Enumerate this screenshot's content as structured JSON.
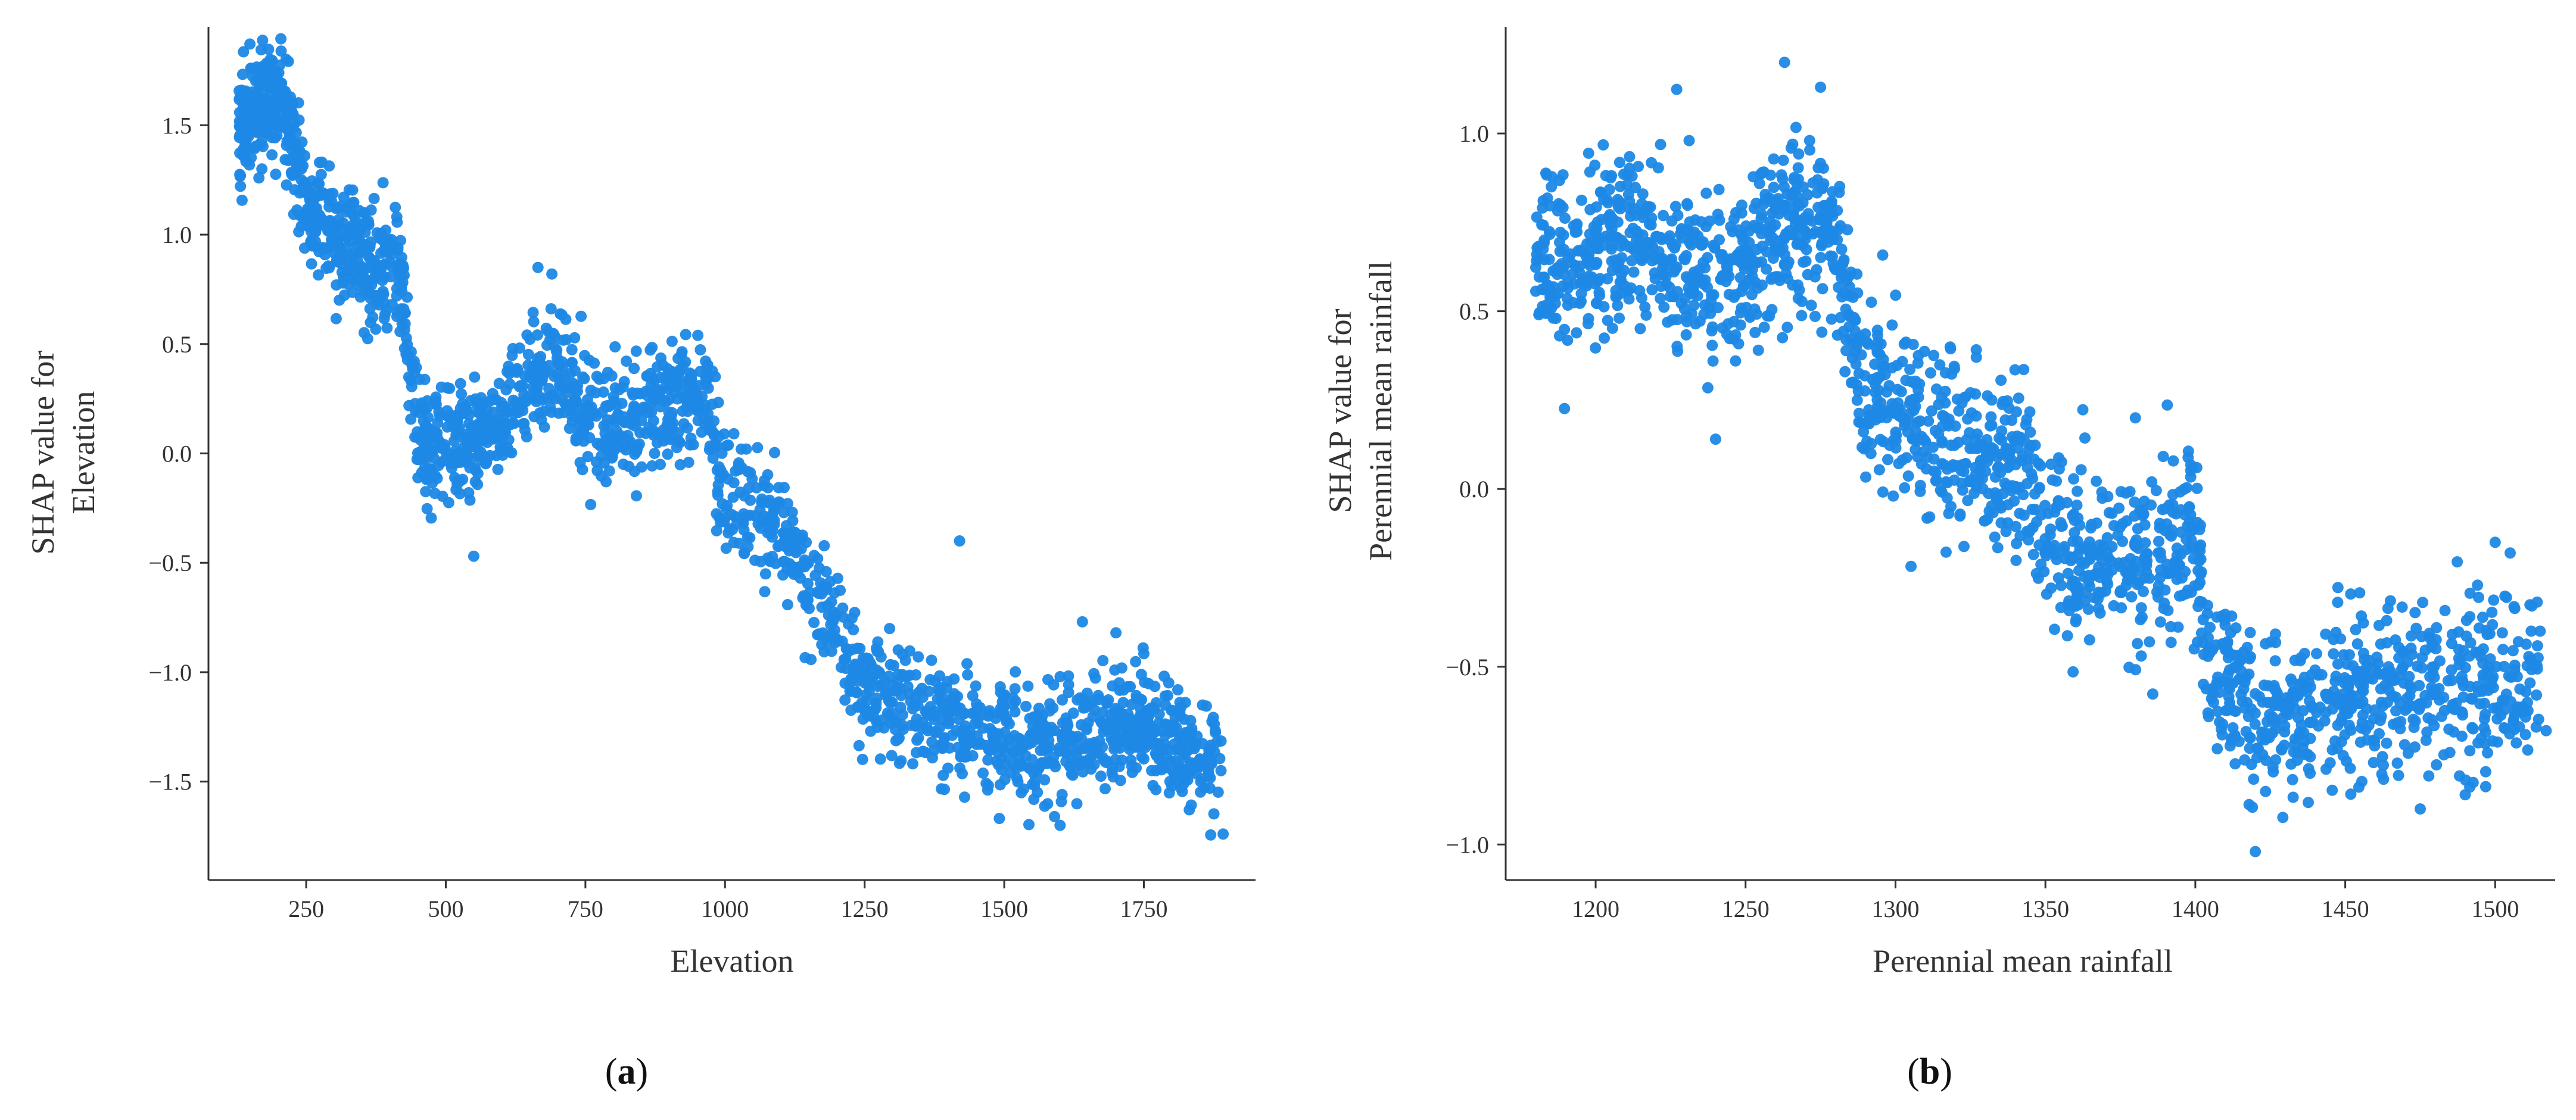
{
  "colors": {
    "points": "#1e88e5",
    "axis": "#333333"
  },
  "chart_data": [
    {
      "type": "scatter",
      "panel_label": {
        "open": "(",
        "letter": "a",
        "close": ")"
      },
      "xlabel": "Elevation",
      "ylabel": [
        "SHAP value for",
        "Elevation"
      ],
      "xlim": [
        75,
        1950
      ],
      "ylim": [
        -1.95,
        1.95
      ],
      "xticks": [
        250,
        500,
        750,
        1000,
        1250,
        1500,
        1750
      ],
      "yticks": [
        -1.5,
        -1.0,
        -0.5,
        0.0,
        0.5,
        1.0,
        1.5
      ],
      "yticklabels": [
        "−1.5",
        "−1.0",
        "−0.5",
        "0.0",
        "0.5",
        "1.0",
        "1.5"
      ],
      "point_count": 2200,
      "trend": [
        [
          130,
          1.5
        ],
        [
          175,
          1.62
        ],
        [
          210,
          1.6
        ],
        [
          250,
          1.15
        ],
        [
          300,
          1.02
        ],
        [
          350,
          0.9
        ],
        [
          420,
          0.82
        ],
        [
          430,
          0.55
        ],
        [
          450,
          0.05
        ],
        [
          550,
          0.08
        ],
        [
          600,
          0.15
        ],
        [
          650,
          0.35
        ],
        [
          700,
          0.4
        ],
        [
          770,
          0.12
        ],
        [
          820,
          0.12
        ],
        [
          880,
          0.22
        ],
        [
          970,
          0.22
        ],
        [
          990,
          -0.12
        ],
        [
          1050,
          -0.3
        ],
        [
          1100,
          -0.35
        ],
        [
          1200,
          -0.8
        ],
        [
          1250,
          -1.05
        ],
        [
          1300,
          -1.15
        ],
        [
          1400,
          -1.2
        ],
        [
          1550,
          -1.35
        ],
        [
          1650,
          -1.3
        ],
        [
          1750,
          -1.25
        ],
        [
          1890,
          -1.45
        ]
      ],
      "series": [
        {
          "values_summary": "SHAP values decreasing from about 1.6 at elevation 200 to about -1.3 near 1600"
        }
      ],
      "extra_points": [
        [
          1892,
          -1.74
        ],
        [
          1590,
          -1.66
        ],
        [
          1600,
          -1.7
        ],
        [
          1420,
          -0.4
        ],
        [
          1800,
          -1.52
        ],
        [
          1855,
          -1.15
        ],
        [
          550,
          -0.47
        ],
        [
          665,
          0.85
        ],
        [
          690,
          0.82
        ],
        [
          1640,
          -0.77
        ],
        [
          1700,
          -0.82
        ]
      ]
    },
    {
      "type": "scatter",
      "panel_label": {
        "open": "(",
        "letter": "b",
        "close": ")"
      },
      "xlabel": "Perennial mean rainfall",
      "ylabel": [
        "SHAP value for",
        "Perennial mean rainfall"
      ],
      "xlim": [
        1170,
        1520
      ],
      "ylim": [
        -1.1,
        1.3
      ],
      "xticks": [
        1200,
        1250,
        1300,
        1350,
        1400,
        1450,
        1500
      ],
      "yticks": [
        -1.0,
        -0.5,
        0.0,
        0.5,
        1.0
      ],
      "yticklabels": [
        "−1.0",
        "−0.5",
        "0.0",
        "0.5",
        "1.0"
      ],
      "point_count": 2000,
      "trend": [
        [
          1180,
          0.62
        ],
        [
          1210,
          0.72
        ],
        [
          1240,
          0.55
        ],
        [
          1255,
          0.68
        ],
        [
          1265,
          0.75
        ],
        [
          1280,
          0.7
        ],
        [
          1290,
          0.3
        ],
        [
          1300,
          0.2
        ],
        [
          1320,
          0.1
        ],
        [
          1340,
          0.08
        ],
        [
          1350,
          -0.1
        ],
        [
          1360,
          -0.2
        ],
        [
          1380,
          -0.2
        ],
        [
          1400,
          -0.15
        ],
        [
          1405,
          -0.5
        ],
        [
          1420,
          -0.65
        ],
        [
          1450,
          -0.6
        ],
        [
          1480,
          -0.55
        ],
        [
          1515,
          -0.55
        ]
      ],
      "series": [
        {
          "values_summary": "SHAP values decreasing from about 0.7 at rainfall 1200-1280 to about -0.6 above 1420"
        }
      ],
      "extra_points": [
        [
          1263,
          1.2
        ],
        [
          1275,
          1.13
        ],
        [
          1420,
          -1.02
        ],
        [
          1240,
          0.14
        ],
        [
          1490,
          -0.86
        ],
        [
          1500,
          -0.15
        ],
        [
          1505,
          -0.18
        ],
        [
          1515,
          -0.4
        ],
        [
          1517,
          -0.68
        ],
        [
          1475,
          -0.9
        ],
        [
          1380,
          0.2
        ]
      ]
    }
  ]
}
